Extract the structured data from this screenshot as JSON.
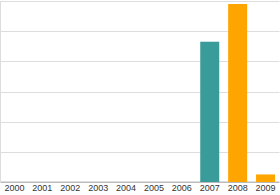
{
  "chart_data": {
    "type": "bar",
    "categories": [
      "2000",
      "2001",
      "2002",
      "2003",
      "2004",
      "2005",
      "2006",
      "2007",
      "2008",
      "2009"
    ],
    "values": [
      0,
      0,
      0,
      0,
      0,
      0,
      0,
      4.65,
      5.9,
      0.25
    ],
    "colors": [
      "#3a9b9b",
      "#3a9b9b",
      "#3a9b9b",
      "#3a9b9b",
      "#3a9b9b",
      "#3a9b9b",
      "#3a9b9b",
      "#3a9b9b",
      "#ffa500",
      "#ffa500"
    ],
    "ylim": [
      0,
      6
    ],
    "yticks": [
      0,
      1,
      2,
      3,
      4,
      5,
      6
    ],
    "grid": true,
    "tick_labels": "x"
  }
}
